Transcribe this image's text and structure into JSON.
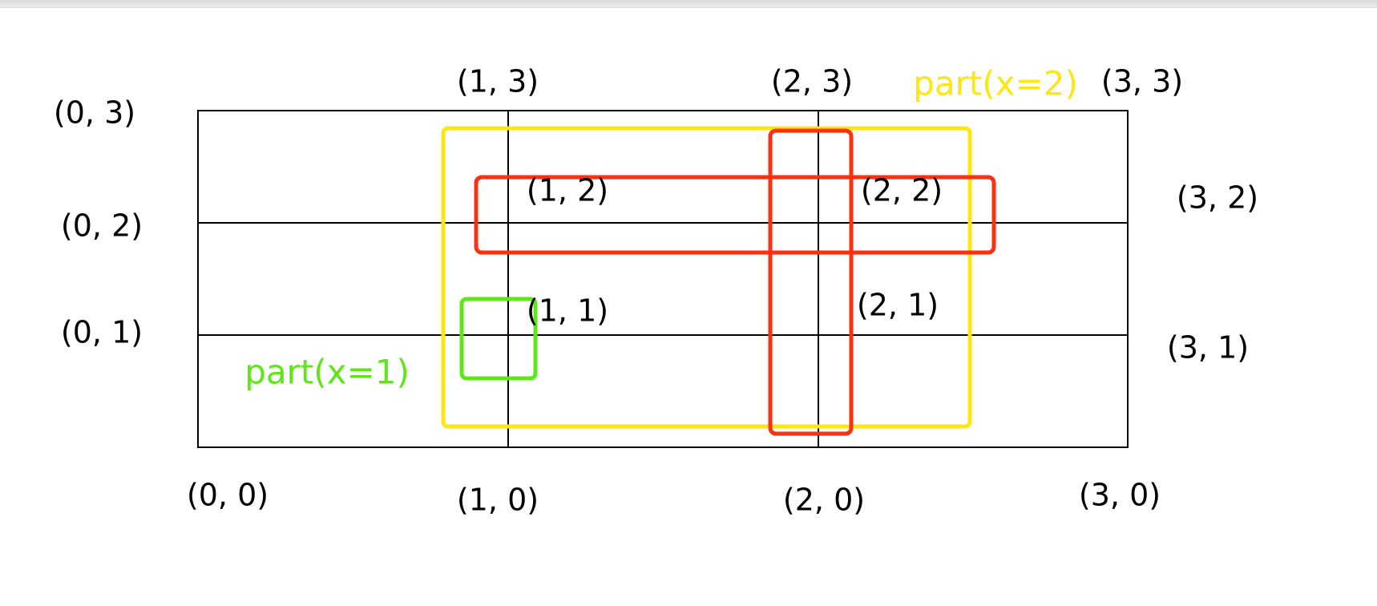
{
  "diagram": {
    "coordinates": [
      {
        "id": "0-0",
        "text": "(0,  0)"
      },
      {
        "id": "1-0",
        "text": "(1,  0)"
      },
      {
        "id": "2-0",
        "text": "(2,  0)"
      },
      {
        "id": "3-0",
        "text": "(3,  0)"
      },
      {
        "id": "0-1",
        "text": "(0,  1)"
      },
      {
        "id": "1-1",
        "text": "(1,  1)"
      },
      {
        "id": "2-1",
        "text": "(2,  1)"
      },
      {
        "id": "3-1",
        "text": "(3,  1)"
      },
      {
        "id": "0-2",
        "text": "(0,  2)"
      },
      {
        "id": "1-2",
        "text": "(1,  2)"
      },
      {
        "id": "2-2",
        "text": "(2,  2)"
      },
      {
        "id": "3-2",
        "text": "(3,  2)"
      },
      {
        "id": "0-3",
        "text": "(0,  3)"
      },
      {
        "id": "1-3",
        "text": "(1,  3)"
      },
      {
        "id": "2-3",
        "text": "(2,  3)"
      },
      {
        "id": "3-3",
        "text": "(3,  3)"
      }
    ],
    "parts": [
      {
        "id": "part-x1",
        "label": "part(x=1)",
        "color": "#5ee617"
      },
      {
        "id": "part-x2",
        "label": "part(x=2)",
        "color": "#fde612"
      }
    ],
    "highlight_colors": {
      "small_box": "#5ee617",
      "large_box": "#fde612",
      "row_box": "#ff3010",
      "column_box": "#ff3010"
    }
  }
}
